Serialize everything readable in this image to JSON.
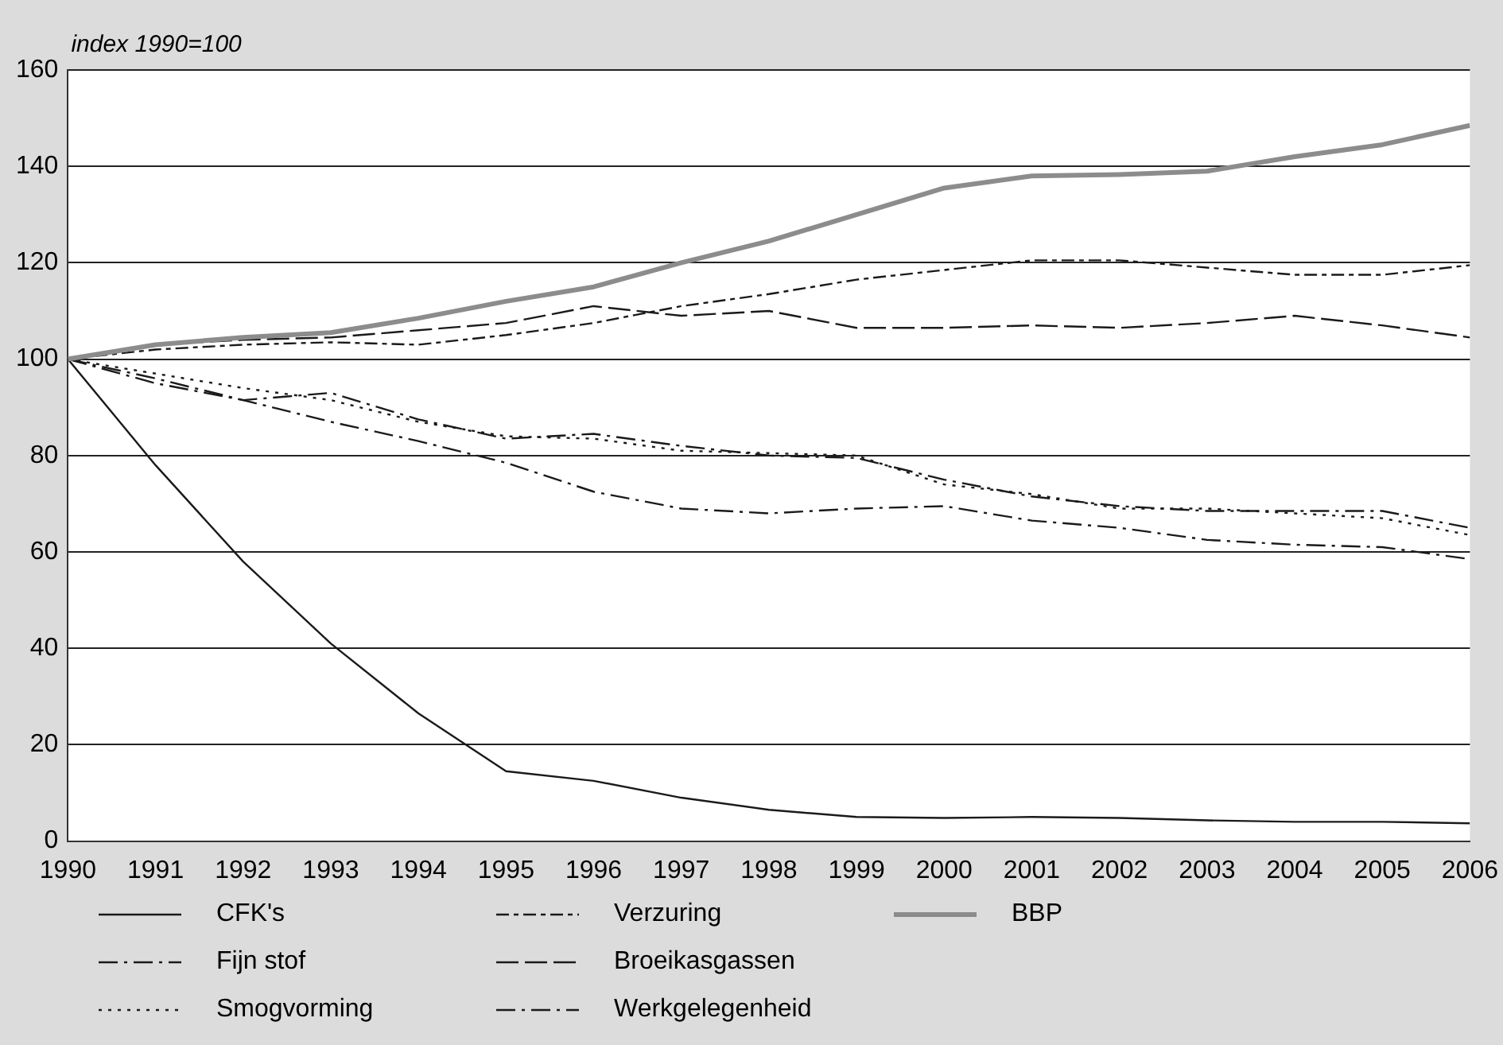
{
  "chart_data": {
    "type": "line",
    "ylabel": "index 1990=100",
    "x": [
      1990,
      1991,
      1992,
      1993,
      1994,
      1995,
      1996,
      1997,
      1998,
      1999,
      2000,
      2001,
      2002,
      2003,
      2004,
      2005,
      2006
    ],
    "xlim": [
      1990,
      2006
    ],
    "xticks": [
      1990,
      1991,
      1992,
      1993,
      1994,
      1995,
      1996,
      1997,
      1998,
      1999,
      2000,
      2001,
      2002,
      2003,
      2004,
      2005,
      2006
    ],
    "ylim": [
      0,
      160
    ],
    "yticks": [
      0,
      20,
      40,
      60,
      80,
      100,
      120,
      140,
      160
    ],
    "grid": "y",
    "legend": "bottom",
    "marker": "none",
    "series": [
      {
        "name": "CFK's",
        "color": "#1a1a1a",
        "line_style": "solid",
        "values": [
          100,
          78,
          58,
          41,
          26.5,
          14.5,
          12.5,
          9,
          6.5,
          5,
          4.8,
          5,
          4.8,
          4.3,
          4,
          4,
          3.7
        ]
      },
      {
        "name": "Fijn stof",
        "color": "#1a1a1a",
        "line_style": "dashed",
        "values": [
          100,
          95,
          91.5,
          87,
          83,
          78.5,
          72.5,
          69,
          68,
          69,
          69.5,
          66.5,
          65,
          62.5,
          61.5,
          61,
          58.5
        ]
      },
      {
        "name": "Smogvorming",
        "color": "#1a1a1a",
        "line_style": "dotted",
        "values": [
          100,
          97,
          94,
          91.5,
          87,
          84,
          83.5,
          81,
          80.5,
          80,
          74,
          72,
          69,
          69,
          68,
          67,
          63.5
        ]
      },
      {
        "name": "Verzuring",
        "color": "#1a1a1a",
        "line_style": "dashed",
        "values": [
          100,
          102,
          103,
          103.5,
          103,
          105,
          107.5,
          111,
          113.5,
          116.5,
          118.5,
          120.5,
          120.5,
          119,
          117.5,
          117.5,
          119.5
        ]
      },
      {
        "name": "Broeikasgassen",
        "color": "#1a1a1a",
        "line_style": "dashed",
        "values": [
          100,
          103,
          104,
          104.5,
          106,
          107.5,
          111,
          109,
          110,
          106.5,
          106.5,
          107,
          106.5,
          107.5,
          109,
          107,
          104.5
        ]
      },
      {
        "name": "Werkgelegenheid",
        "color": "#1a1a1a",
        "line_style": "dashed",
        "values": [
          100,
          96,
          91.5,
          93,
          87.5,
          83.5,
          84.5,
          82,
          80,
          79.5,
          75,
          71.5,
          69.5,
          68.5,
          68.5,
          68.5,
          65
        ]
      },
      {
        "name": "BBP",
        "color": "#8c8c8c",
        "line_style": "solid",
        "values": [
          100,
          103,
          104.5,
          105.5,
          108.5,
          112,
          115,
          120,
          124.5,
          130,
          135.5,
          138,
          138.3,
          139,
          142,
          144.5,
          148.5
        ]
      }
    ]
  }
}
